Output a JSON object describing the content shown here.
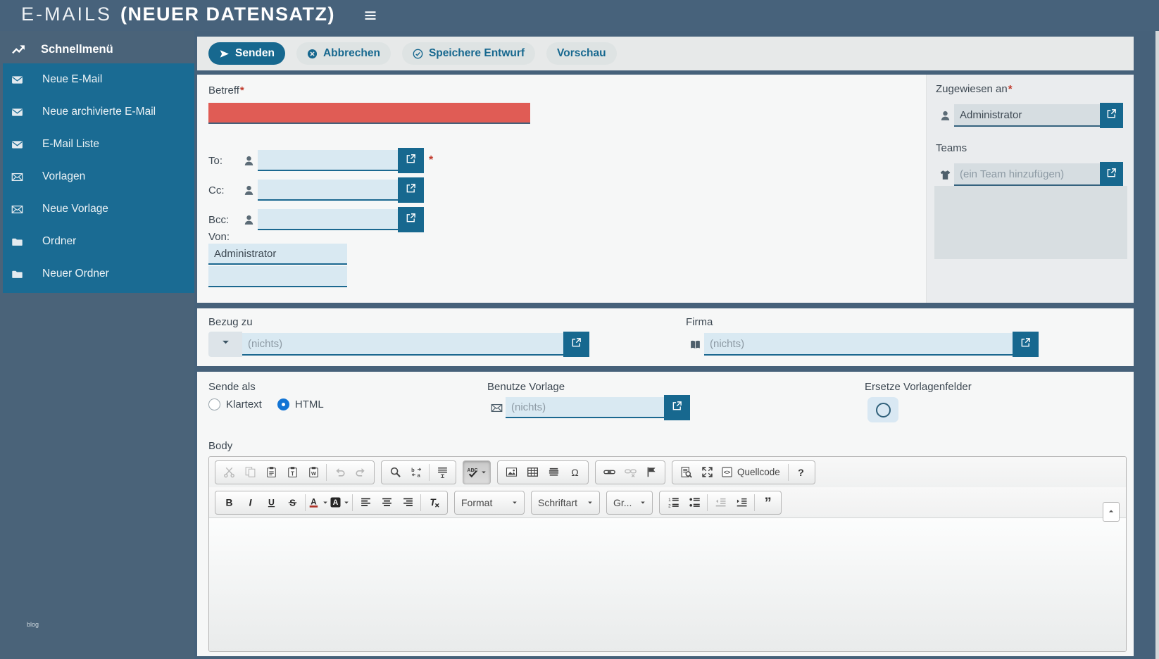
{
  "required_marker": "*",
  "header": {
    "title": "E-MAILS",
    "subtitle": "(NEUER DATENSATZ)"
  },
  "sidebar": {
    "menu_title": "Schnellmenü",
    "items": [
      {
        "name": "sidebar-item-neue-email",
        "label": "Neue E-Mail",
        "icon": "envelope-filled-icon"
      },
      {
        "name": "sidebar-item-neue-archivierte-email",
        "label": "Neue archivierte E-Mail",
        "icon": "envelope-filled-icon"
      },
      {
        "name": "sidebar-item-email-liste",
        "label": "E-Mail Liste",
        "icon": "envelope-filled-icon"
      },
      {
        "name": "sidebar-item-vorlagen",
        "label": "Vorlagen",
        "icon": "envelope-outline-icon"
      },
      {
        "name": "sidebar-item-neue-vorlage",
        "label": "Neue Vorlage",
        "icon": "envelope-outline-icon"
      },
      {
        "name": "sidebar-item-ordner",
        "label": "Ordner",
        "icon": "folder-icon"
      },
      {
        "name": "sidebar-item-neuer-ordner",
        "label": "Neuer Ordner",
        "icon": "folder-icon"
      }
    ],
    "footer_text": "blog"
  },
  "actions": [
    {
      "name": "senden-button",
      "label": "Senden",
      "icon": "send-icon",
      "variant": "primary"
    },
    {
      "name": "abbrechen-button",
      "label": "Abbrechen",
      "icon": "cancel-circle-icon",
      "variant": "secondary"
    },
    {
      "name": "speichere-entwurf-button",
      "label": "Speichere Entwurf",
      "icon": "check-circle-icon",
      "variant": "secondary"
    },
    {
      "name": "vorschau-button",
      "label": "Vorschau",
      "variant": "secondary"
    }
  ],
  "form": {
    "betreff_label": "Betreff",
    "betreff_value": "",
    "recipients": [
      {
        "name": "to-row",
        "label": "To:",
        "required": true,
        "value": ""
      },
      {
        "name": "cc-row",
        "label": "Cc:",
        "required": false,
        "value": ""
      },
      {
        "name": "bcc-row",
        "label": "Bcc:",
        "required": false,
        "value": ""
      }
    ],
    "von_label": "Von:",
    "von_value": "Administrator",
    "zugewiesen_label": "Zugewiesen an",
    "zugewiesen_value": "Administrator",
    "teams_label": "Teams",
    "teams_placeholder": "(ein Team hinzufügen)",
    "bezug_label": "Bezug zu",
    "bezug_placeholder": "(nichts)",
    "firma_label": "Firma",
    "firma_placeholder": "(nichts)",
    "sende_als_label": "Sende als",
    "sende_als_options": [
      {
        "name": "klartext-radio",
        "label": "Klartext",
        "selected": false
      },
      {
        "name": "html-radio",
        "label": "HTML",
        "selected": true
      }
    ],
    "vorlage_label": "Benutze Vorlage",
    "vorlage_placeholder": "(nichts)",
    "ersetze_label": "Ersetze Vorlagenfelder",
    "ersetze_checked": false,
    "body_label": "Body"
  },
  "editor": {
    "row1": [
      {
        "buttons": [
          {
            "name": "cut-button",
            "icon": "cut-icon",
            "disabled": true
          },
          {
            "name": "copy-button",
            "icon": "copy-icon",
            "disabled": true
          },
          {
            "name": "paste-button",
            "icon": "paste-icon"
          },
          {
            "name": "paste-plain-text-button",
            "icon": "paste-text-icon"
          },
          {
            "name": "paste-from-word-button",
            "icon": "paste-word-icon"
          },
          {
            "sep": true
          },
          {
            "name": "undo-button",
            "icon": "undo-icon",
            "disabled": true
          },
          {
            "name": "redo-button",
            "icon": "redo-icon",
            "disabled": true
          }
        ]
      },
      {
        "buttons": [
          {
            "name": "find-button",
            "icon": "find-icon"
          },
          {
            "name": "replace-button",
            "icon": "replace-icon"
          },
          {
            "sep": true
          },
          {
            "name": "select-all-button",
            "icon": "select-all-icon"
          }
        ]
      },
      {
        "pressed": true,
        "buttons": [
          {
            "name": "spellcheck-button",
            "icon": "spellcheck-icon",
            "active": true,
            "caret": true
          }
        ]
      },
      {
        "buttons": [
          {
            "name": "image-button",
            "icon": "image-icon"
          },
          {
            "name": "table-button",
            "icon": "table-icon"
          },
          {
            "name": "horizontal-rule-button",
            "icon": "horizontal-rule-icon"
          },
          {
            "name": "special-char-button",
            "icon": "special-char-icon"
          }
        ]
      },
      {
        "buttons": [
          {
            "name": "link-button",
            "icon": "link-icon"
          },
          {
            "name": "unlink-button",
            "icon": "unlink-icon",
            "disabled": true
          },
          {
            "name": "anchor-button",
            "icon": "anchor-flag-icon"
          }
        ]
      },
      {
        "buttons": [
          {
            "name": "preview-button",
            "icon": "preview-icon"
          },
          {
            "name": "maximize-button",
            "icon": "maximize-icon"
          },
          {
            "name": "source-button",
            "icon": "source-icon",
            "label": "Quellcode"
          },
          {
            "sep": true
          },
          {
            "name": "about-button",
            "icon": "about-icon"
          }
        ]
      }
    ],
    "row2": [
      {
        "buttons": [
          {
            "name": "bold-button",
            "icon": "bold-icon"
          },
          {
            "name": "italic-button",
            "icon": "italic-icon"
          },
          {
            "name": "underline-button",
            "icon": "underline-icon"
          },
          {
            "name": "strike-button",
            "icon": "strike-icon"
          },
          {
            "sep": true
          },
          {
            "name": "text-color-button",
            "icon": "text-color-icon",
            "caret": true
          },
          {
            "name": "bg-color-button",
            "icon": "bg-color-icon",
            "caret": true
          },
          {
            "sep": true
          },
          {
            "name": "align-left-button",
            "icon": "align-left-icon"
          },
          {
            "name": "align-center-button",
            "icon": "align-center-icon"
          },
          {
            "name": "align-right-button",
            "icon": "align-right-icon"
          },
          {
            "sep": true
          },
          {
            "name": "remove-format-button",
            "icon": "remove-format-icon"
          }
        ]
      },
      {
        "combo": "Format",
        "name": "format-combo"
      },
      {
        "combo": "Schriftart",
        "name": "font-combo"
      },
      {
        "combo": "Gr...",
        "name": "size-combo"
      },
      {
        "buttons": [
          {
            "name": "numbered-list-button",
            "icon": "ordered-list-icon"
          },
          {
            "name": "bullet-list-button",
            "icon": "bullet-list-icon"
          },
          {
            "sep": true
          },
          {
            "name": "outdent-button",
            "icon": "outdent-icon",
            "disabled": true
          },
          {
            "name": "indent-button",
            "icon": "indent-icon"
          },
          {
            "sep": true
          },
          {
            "name": "blockquote-button",
            "icon": "blockquote-icon"
          }
        ]
      }
    ]
  },
  "colors": {
    "accent": "#17688f",
    "slate": "#46617a",
    "menu_teal": "#1a6b93",
    "error_field": "#e05c55",
    "field_blue": "#d9e9f2"
  }
}
